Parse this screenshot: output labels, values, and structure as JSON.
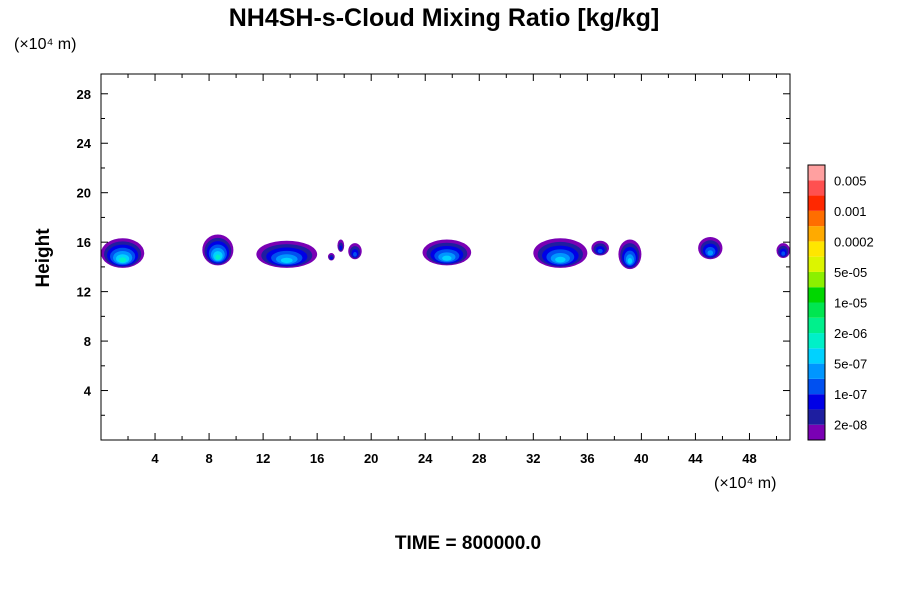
{
  "chart_data": {
    "type": "heatmap",
    "title": "NH4SH-s-Cloud Mixing Ratio [kg/kg]",
    "ylabel": "Height",
    "y_unit": "(×10⁴ m)",
    "x_unit": "(×10⁴ m)",
    "time_label": "TIME = 800000.0",
    "xlim": [
      0,
      51
    ],
    "ylim": [
      0,
      29.6
    ],
    "x_ticks": [
      4,
      8,
      12,
      16,
      20,
      24,
      28,
      32,
      36,
      40,
      44,
      48
    ],
    "y_ticks": [
      4,
      8,
      12,
      16,
      20,
      24,
      28
    ],
    "colorbar": {
      "colors": [
        "#7a00b4",
        "#1e1ea0",
        "#0000e6",
        "#0050f0",
        "#0096ff",
        "#00d2ff",
        "#00f0c8",
        "#00f08c",
        "#00e650",
        "#00d700",
        "#8cf000",
        "#dcf500",
        "#ffe600",
        "#ffaa00",
        "#ff6e00",
        "#ff2800",
        "#ff5050",
        "#ffa0a0"
      ],
      "labels": [
        "2e-08",
        "1e-07",
        "5e-07",
        "2e-06",
        "1e-05",
        "5e-05",
        "0.0002",
        "0.001",
        "0.005"
      ]
    },
    "cloud_blobs": [
      {
        "x": [
          0.0,
          3.2
        ],
        "top": 16.4,
        "bottom": 14.0,
        "peak": 6
      },
      {
        "x": [
          7.5,
          9.8
        ],
        "top": 16.7,
        "bottom": 14.2,
        "peak": 6
      },
      {
        "x": [
          11.5,
          16.0
        ],
        "top": 16.2,
        "bottom": 14.0,
        "peak": 5
      },
      {
        "x": [
          16.8,
          17.3
        ],
        "top": 15.2,
        "bottom": 14.6,
        "peak": 2
      },
      {
        "x": [
          17.5,
          18.0
        ],
        "top": 16.3,
        "bottom": 15.3,
        "peak": 2
      },
      {
        "x": [
          18.3,
          19.3
        ],
        "top": 16.0,
        "bottom": 14.7,
        "peak": 3
      },
      {
        "x": [
          23.8,
          27.4
        ],
        "top": 16.3,
        "bottom": 14.2,
        "peak": 5
      },
      {
        "x": [
          32.0,
          36.0
        ],
        "top": 16.4,
        "bottom": 14.0,
        "peak": 5
      },
      {
        "x": [
          36.3,
          37.6
        ],
        "top": 16.2,
        "bottom": 15.0,
        "peak": 3
      },
      {
        "x": [
          38.3,
          40.0
        ],
        "top": 16.3,
        "bottom": 13.9,
        "peak": 5
      },
      {
        "x": [
          44.2,
          46.0
        ],
        "top": 16.5,
        "bottom": 14.7,
        "peak": 4
      },
      {
        "x": [
          50.0,
          51.0
        ],
        "top": 16.0,
        "bottom": 14.8,
        "peak": 3
      }
    ]
  }
}
